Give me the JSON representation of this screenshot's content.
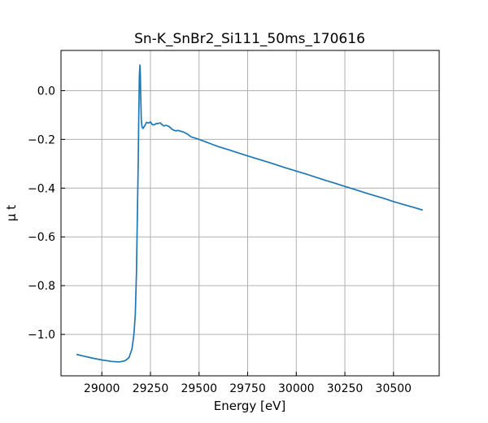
{
  "chart_data": {
    "type": "line",
    "title": "Sn-K_SnBr2_Si111_50ms_170616",
    "xlabel": "Energy [eV]",
    "ylabel": "μ t",
    "xlim": [
      28790,
      30735
    ],
    "ylim": [
      -1.17,
      0.165
    ],
    "xticks": [
      29000,
      29250,
      29500,
      29750,
      30000,
      30250,
      30500
    ],
    "yticks": [
      0.0,
      -0.2,
      -0.4,
      -0.6,
      -0.8,
      -1.0
    ],
    "ytick_labels": [
      "0.0",
      "−0.2",
      "−0.4",
      "−0.6",
      "−0.8",
      "−1.0"
    ],
    "grid": true,
    "line_color": "#1f77b4",
    "series": [
      {
        "x": [
          28870,
          28900,
          28950,
          29000,
          29050,
          29090,
          29120,
          29140,
          29155,
          29165,
          29172,
          29178,
          29183,
          29187,
          29190,
          29193,
          29196,
          29198,
          29200,
          29203,
          29207,
          29212,
          29220,
          29230,
          29240,
          29250,
          29260,
          29270,
          29280,
          29290,
          29300,
          29310,
          29320,
          29330,
          29340,
          29350,
          29360,
          29370,
          29380,
          29390,
          29400,
          29420,
          29440,
          29460,
          29480,
          29500,
          29550,
          29600,
          29650,
          29700,
          29750,
          29800,
          29850,
          29900,
          29950,
          30000,
          30050,
          30100,
          30150,
          30200,
          30250,
          30300,
          30350,
          30400,
          30450,
          30500,
          30550,
          30600,
          30650
        ],
        "y": [
          -1.082,
          -1.088,
          -1.097,
          -1.105,
          -1.111,
          -1.113,
          -1.108,
          -1.095,
          -1.06,
          -1.0,
          -0.92,
          -0.75,
          -0.5,
          -0.3,
          -0.1,
          0.06,
          0.105,
          0.07,
          -0.02,
          -0.12,
          -0.15,
          -0.155,
          -0.145,
          -0.13,
          -0.133,
          -0.128,
          -0.14,
          -0.14,
          -0.135,
          -0.135,
          -0.132,
          -0.14,
          -0.145,
          -0.142,
          -0.145,
          -0.15,
          -0.158,
          -0.162,
          -0.165,
          -0.163,
          -0.165,
          -0.17,
          -0.178,
          -0.19,
          -0.195,
          -0.2,
          -0.215,
          -0.23,
          -0.242,
          -0.255,
          -0.268,
          -0.28,
          -0.292,
          -0.305,
          -0.318,
          -0.33,
          -0.342,
          -0.355,
          -0.368,
          -0.38,
          -0.393,
          -0.405,
          -0.418,
          -0.43,
          -0.442,
          -0.455,
          -0.467,
          -0.478,
          -0.49
        ]
      }
    ]
  }
}
